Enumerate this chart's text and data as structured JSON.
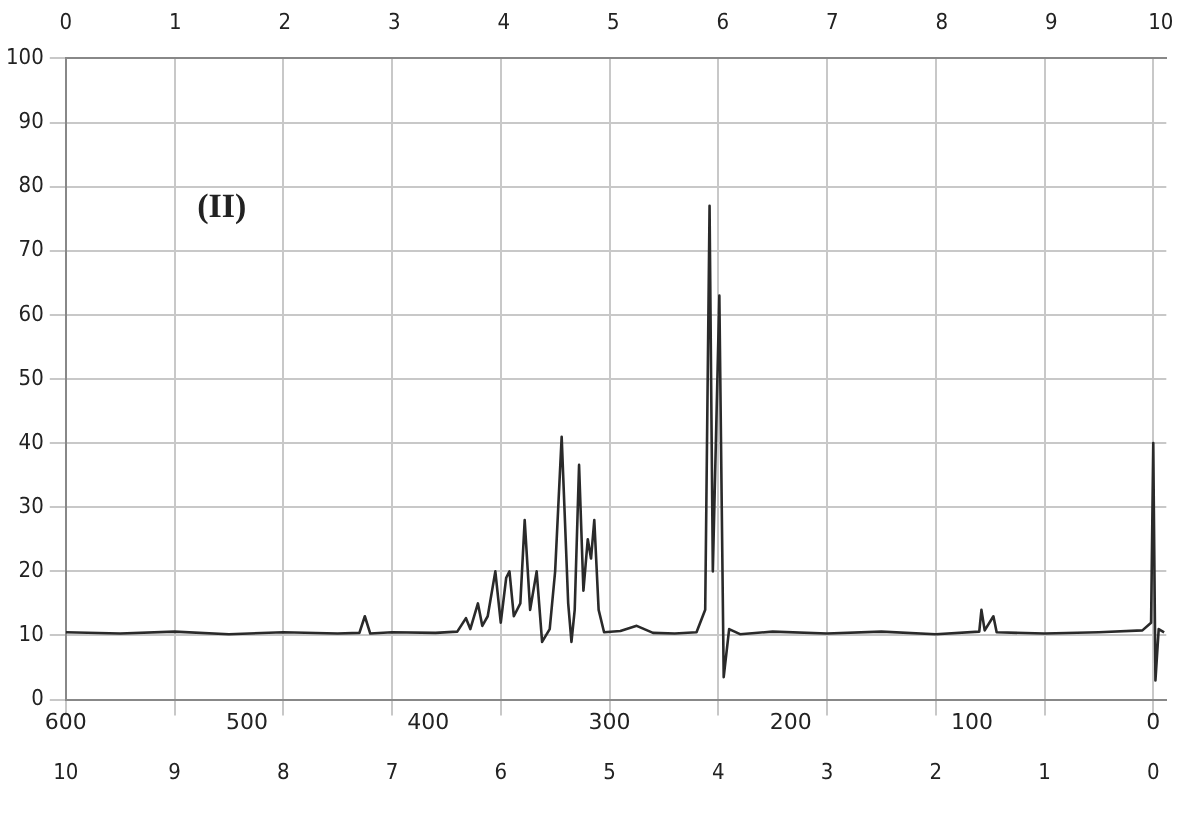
{
  "chart_data": {
    "type": "line",
    "annotations": [
      "(II)",
      "600",
      "500",
      "400",
      "300",
      "200",
      "100",
      "0"
    ],
    "x": [
      10,
      9.5,
      9,
      8.5,
      8,
      7.5,
      7.3,
      7.25,
      7.2,
      7,
      6.6,
      6.4,
      6.32,
      6.28,
      6.21,
      6.17,
      6.12,
      6.05,
      6.0,
      5.95,
      5.92,
      5.88,
      5.82,
      5.78,
      5.73,
      5.67,
      5.62,
      5.55,
      5.5,
      5.44,
      5.38,
      5.35,
      5.32,
      5.28,
      5.24,
      5.2,
      5.17,
      5.14,
      5.1,
      5.05,
      4.9,
      4.75,
      4.6,
      4.4,
      4.2,
      4.12,
      4.08,
      4.05,
      3.99,
      3.95,
      3.9,
      3.8,
      3.5,
      3.0,
      2.5,
      2.0,
      1.6,
      1.58,
      1.55,
      1.47,
      1.44,
      1.0,
      0.5,
      0.1,
      0.02,
      0,
      -0.02,
      -0.05,
      -0.1
    ],
    "series": [
      {
        "color": "#2a2a2a",
        "values": [
          10.5,
          10.3,
          10.6,
          10.2,
          10.5,
          10.3,
          10.4,
          13,
          10.3,
          10.5,
          10.4,
          10.6,
          12.7,
          11,
          15,
          11.5,
          13,
          20,
          12,
          19,
          20,
          13,
          15,
          28,
          14,
          20,
          9,
          11,
          20,
          41,
          15,
          9,
          14,
          36.6,
          17,
          25,
          22,
          28,
          14,
          10.5,
          10.7,
          11.5,
          10.4,
          10.3,
          10.5,
          14,
          77,
          20,
          63,
          3.5,
          11,
          10.2,
          10.6,
          10.3,
          10.6,
          10.2,
          10.6,
          14,
          10.8,
          13,
          10.5,
          10.3,
          10.5,
          10.8,
          12,
          40,
          3,
          11,
          10.5
        ]
      }
    ],
    "xlim": [
      10,
      -0.12
    ],
    "xticks": [
      10,
      9,
      8,
      7,
      6,
      5,
      4,
      3,
      2,
      1,
      0
    ],
    "x2lim": [
      0,
      10.05
    ],
    "x2ticks": [
      0,
      1,
      2,
      3,
      4,
      5,
      6,
      7,
      8,
      9,
      10
    ],
    "ylim": [
      0,
      100
    ],
    "yticks": [
      0,
      10,
      20,
      30,
      40,
      50,
      60,
      70,
      80,
      90,
      100
    ],
    "grid": true,
    "legend": false,
    "marker": "none",
    "line_style": "solid"
  }
}
